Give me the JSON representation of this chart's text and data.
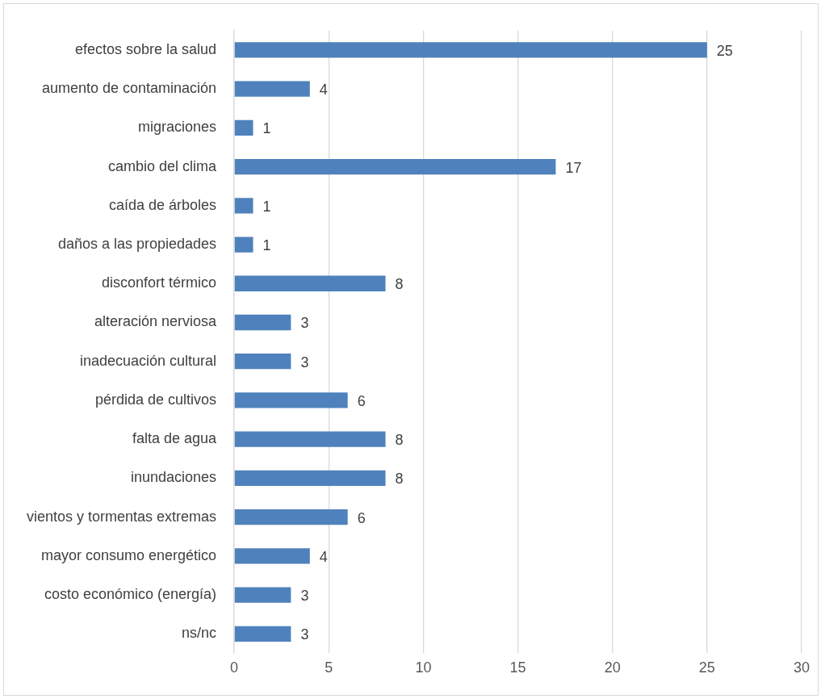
{
  "chart_data": {
    "type": "bar",
    "orientation": "horizontal",
    "categories": [
      "efectos sobre la salud",
      "aumento de contaminación",
      "migraciones",
      "cambio del clima",
      "caída de árboles",
      "daños a las propiedades",
      "disconfort térmico",
      "alteración nerviosa",
      "inadecuación cultural",
      "pérdida de cultivos",
      "falta de agua",
      "inundaciones",
      "vientos y tormentas extremas",
      "mayor consumo energético",
      "costo económico (energía)",
      "ns/nc"
    ],
    "values": [
      25,
      4,
      1,
      17,
      1,
      1,
      8,
      3,
      3,
      6,
      8,
      8,
      6,
      4,
      3,
      3
    ],
    "color": "#4f81bd",
    "xlim": [
      0,
      30
    ],
    "xticks": [
      0,
      5,
      10,
      15,
      20,
      25,
      30
    ],
    "grid": "x",
    "legend": false,
    "data_labels": true
  }
}
